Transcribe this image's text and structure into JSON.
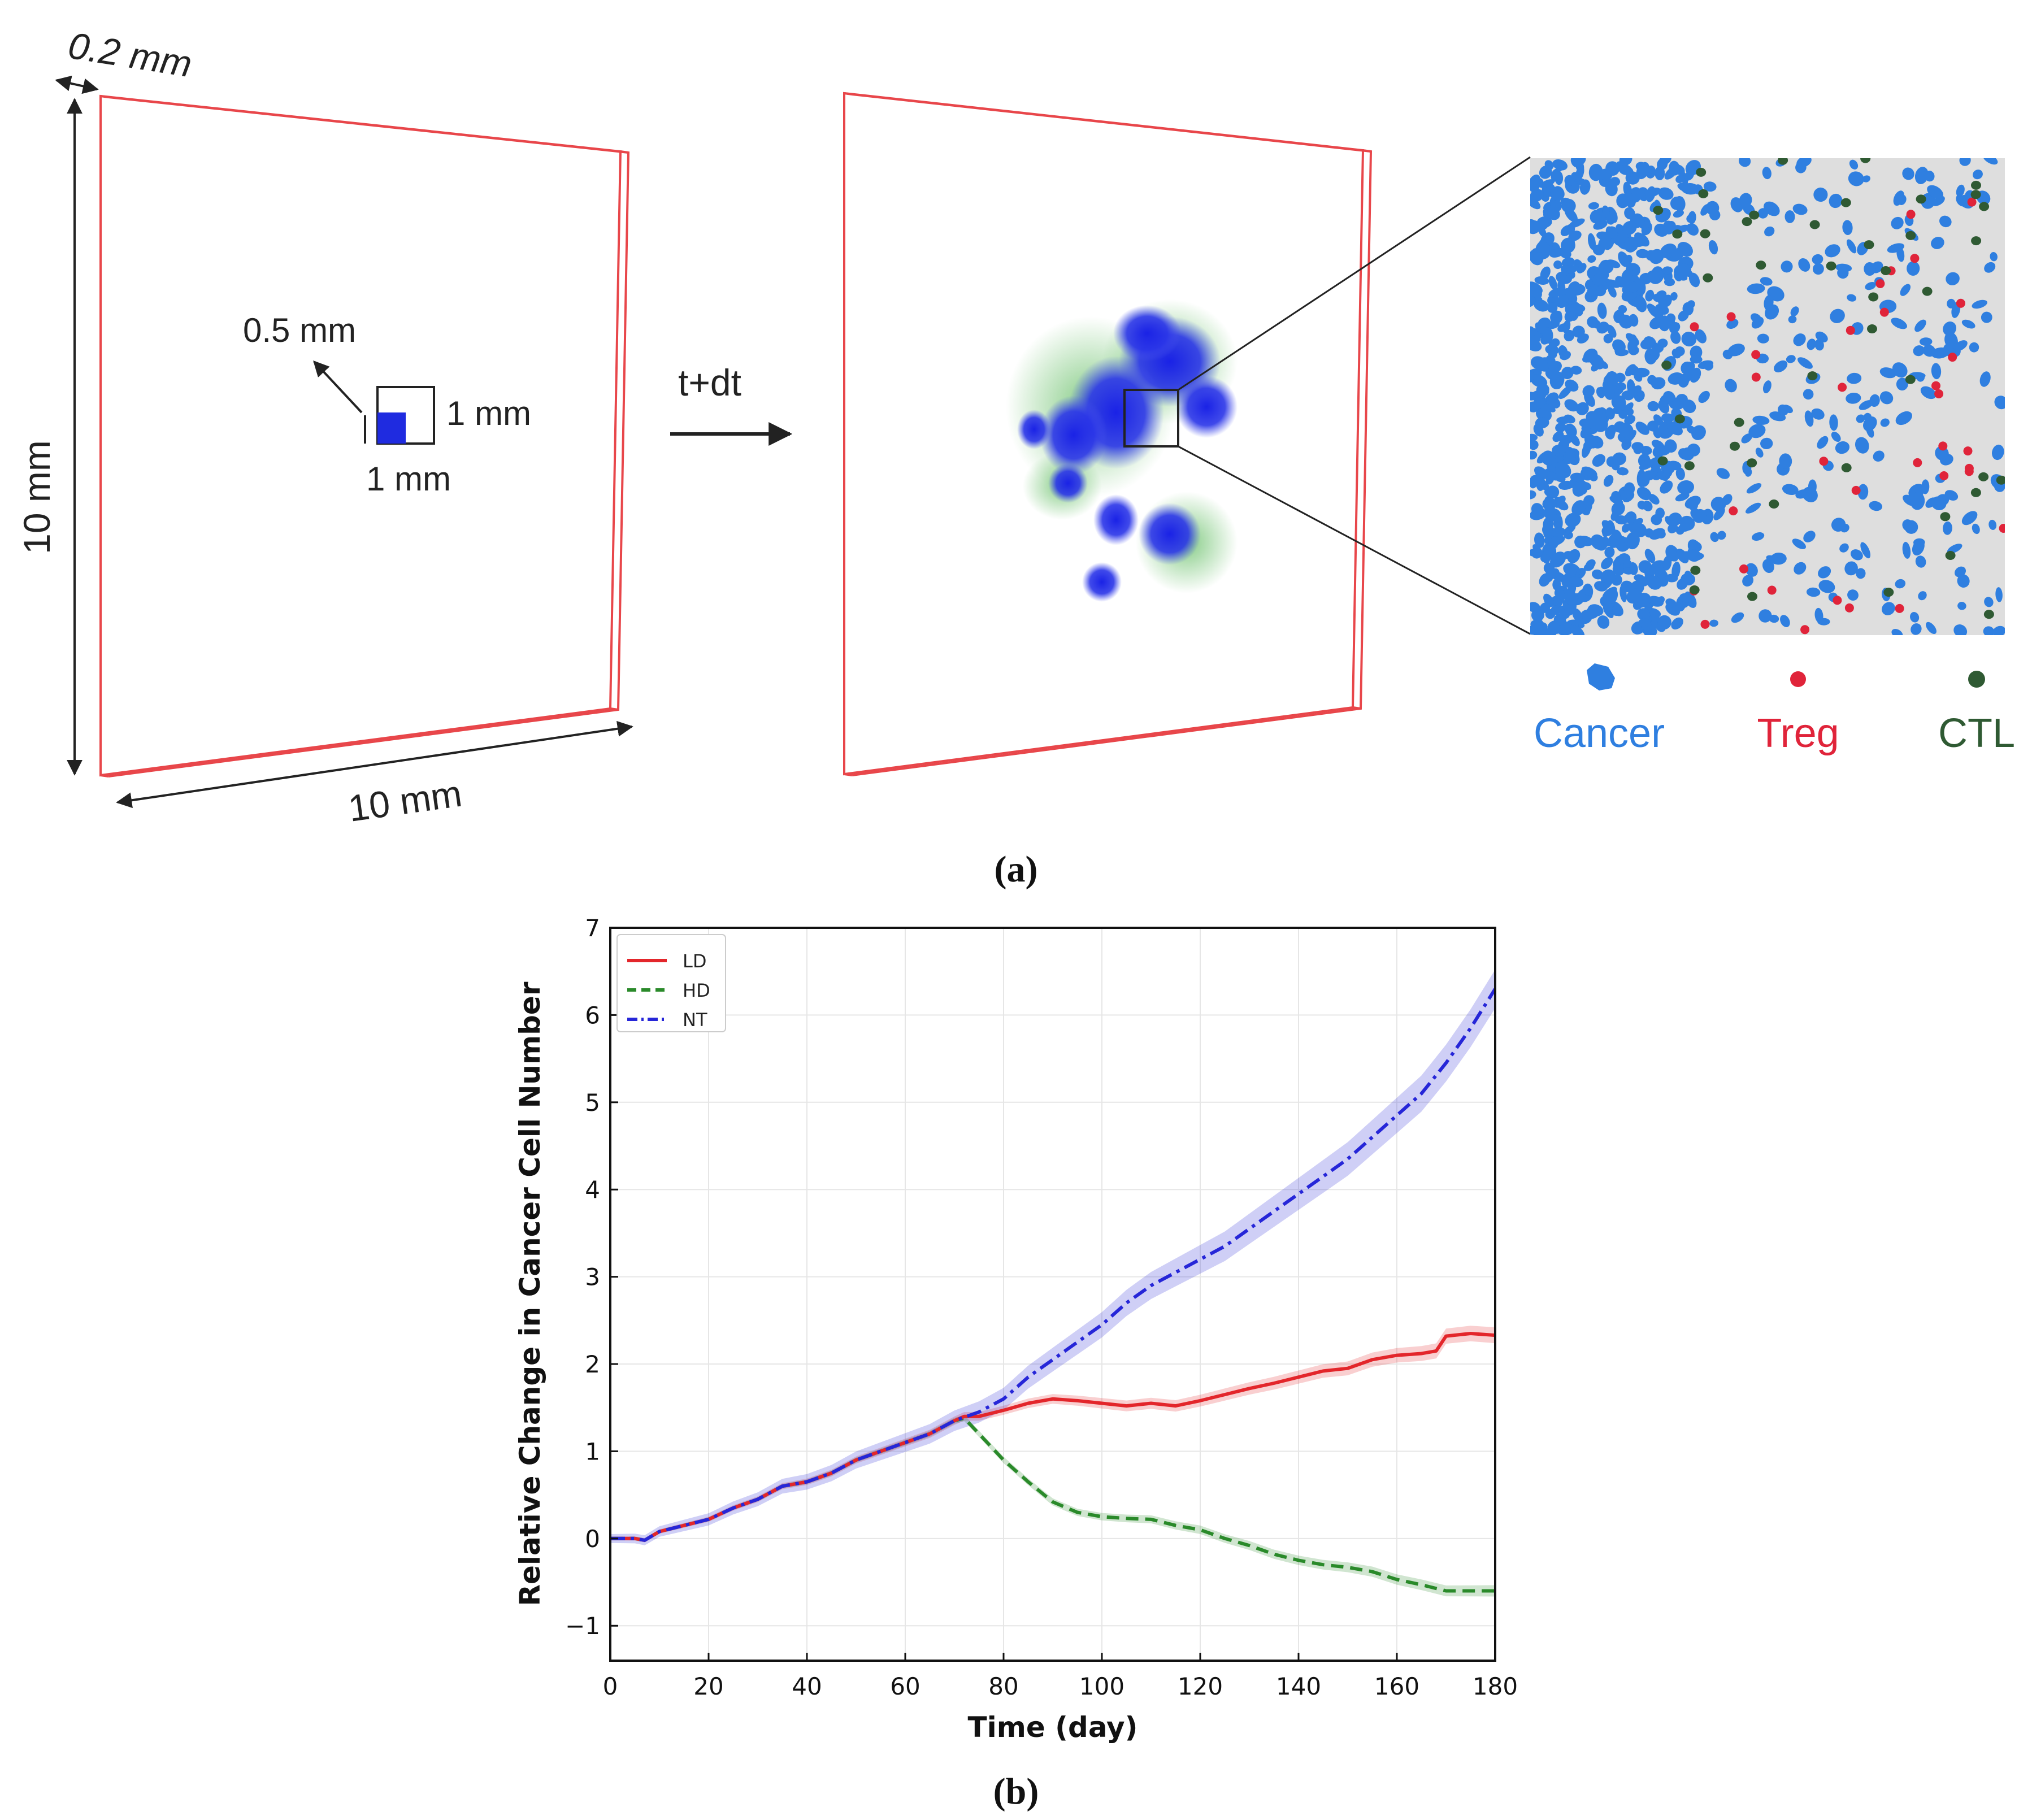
{
  "panel_a": {
    "caption": "(a)",
    "dims": {
      "thickness": "0.2 mm",
      "height": "10 mm",
      "width": "10 mm",
      "seed_offset": "0.5 mm",
      "seed_side": "1 mm",
      "seed_bottom": "1 mm"
    },
    "time_step": "t+dt",
    "legend": [
      {
        "label": "Cancer",
        "color": "#2f7fe0",
        "icon": "cancer-cell-icon"
      },
      {
        "label": "Treg",
        "color": "#e0243a",
        "icon": "treg-cell-icon"
      },
      {
        "label": "CTL",
        "color": "#2f5a33",
        "icon": "ctl-cell-icon"
      }
    ],
    "colors": {
      "frame": "#e8464a",
      "inset_bg": "#dedede",
      "cluster": "#1f2be0",
      "ctl_scatter": "#3aa53a"
    }
  },
  "panel_b": {
    "caption": "(b)",
    "chart_data": {
      "type": "line",
      "xlabel": "Time (day)",
      "ylabel": "Relative Change in Cancer Cell Number",
      "xlim": [
        0,
        180
      ],
      "ylim": [
        -1.4,
        7
      ],
      "xticks": [
        0,
        20,
        40,
        60,
        80,
        100,
        120,
        140,
        160,
        180
      ],
      "yticks": [
        -1,
        0,
        1,
        2,
        3,
        4,
        5,
        6,
        7
      ],
      "grid": true,
      "legend_position": "top-left",
      "series": [
        {
          "name": "LD",
          "color": "#e3262b",
          "dash": "solid",
          "band": 0.07,
          "x": [
            0,
            5,
            7,
            10,
            15,
            20,
            25,
            30,
            35,
            40,
            45,
            50,
            55,
            60,
            65,
            70,
            72,
            75,
            80,
            85,
            90,
            95,
            100,
            105,
            110,
            115,
            120,
            125,
            130,
            135,
            140,
            145,
            150,
            155,
            160,
            165,
            168,
            170,
            175,
            180
          ],
          "y": [
            0,
            0,
            -0.02,
            0.08,
            0.15,
            0.22,
            0.35,
            0.45,
            0.6,
            0.65,
            0.75,
            0.9,
            1.0,
            1.1,
            1.2,
            1.35,
            1.4,
            1.4,
            1.47,
            1.55,
            1.6,
            1.58,
            1.55,
            1.52,
            1.55,
            1.52,
            1.58,
            1.65,
            1.72,
            1.78,
            1.85,
            1.92,
            1.95,
            2.05,
            2.1,
            2.12,
            2.15,
            2.32,
            2.35,
            2.33
          ]
        },
        {
          "name": "HD",
          "color": "#2a8a2a",
          "dash": "dashed",
          "band": 0.05,
          "x": [
            0,
            5,
            7,
            10,
            15,
            20,
            25,
            30,
            35,
            40,
            45,
            50,
            55,
            60,
            65,
            70,
            72,
            75,
            80,
            85,
            90,
            95,
            100,
            105,
            110,
            115,
            120,
            125,
            130,
            135,
            140,
            145,
            150,
            155,
            160,
            165,
            170,
            175,
            180
          ],
          "y": [
            0,
            0,
            -0.02,
            0.08,
            0.15,
            0.22,
            0.35,
            0.45,
            0.6,
            0.65,
            0.75,
            0.9,
            1.0,
            1.1,
            1.2,
            1.35,
            1.38,
            1.2,
            0.9,
            0.65,
            0.42,
            0.3,
            0.25,
            0.23,
            0.22,
            0.15,
            0.1,
            0.0,
            -0.08,
            -0.18,
            -0.25,
            -0.3,
            -0.33,
            -0.38,
            -0.47,
            -0.53,
            -0.6,
            -0.6,
            -0.6
          ]
        },
        {
          "name": "NT",
          "color": "#2626d8",
          "dash": "dashdot",
          "band": 0.17,
          "x": [
            0,
            5,
            7,
            10,
            15,
            20,
            25,
            30,
            35,
            40,
            45,
            50,
            55,
            60,
            65,
            70,
            75,
            80,
            85,
            90,
            95,
            100,
            105,
            110,
            115,
            120,
            125,
            130,
            135,
            140,
            145,
            150,
            155,
            160,
            165,
            170,
            175,
            180
          ],
          "y": [
            0,
            0,
            -0.02,
            0.08,
            0.15,
            0.22,
            0.35,
            0.45,
            0.6,
            0.65,
            0.75,
            0.9,
            1.0,
            1.1,
            1.2,
            1.35,
            1.45,
            1.6,
            1.85,
            2.05,
            2.25,
            2.45,
            2.7,
            2.9,
            3.05,
            3.2,
            3.35,
            3.55,
            3.75,
            3.95,
            4.15,
            4.35,
            4.6,
            4.85,
            5.1,
            5.45,
            5.85,
            6.3
          ]
        }
      ]
    }
  }
}
